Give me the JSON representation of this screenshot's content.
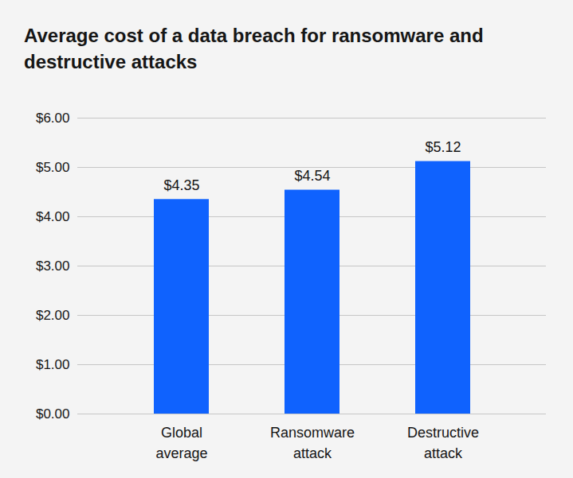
{
  "chart_data": {
    "type": "bar",
    "title": "Average cost of a data breach for ransomware and destructive attacks",
    "categories": [
      "Global average",
      "Ransomware attack",
      "Destructive attack"
    ],
    "values": [
      4.35,
      4.54,
      5.12
    ],
    "value_labels": [
      "$4.35",
      "$4.54",
      "$5.12"
    ],
    "data_labels": true,
    "color": "#0f62fe",
    "ylim": [
      0,
      6
    ],
    "yticks": [
      {
        "value": 0,
        "label": "$0.00"
      },
      {
        "value": 1,
        "label": "$1.00"
      },
      {
        "value": 2,
        "label": "$2.00"
      },
      {
        "value": 3,
        "label": "$3.00"
      },
      {
        "value": 4,
        "label": "$4.00"
      },
      {
        "value": 5,
        "label": "$5.00"
      },
      {
        "value": 6,
        "label": "$6.00"
      }
    ],
    "grid": true
  }
}
